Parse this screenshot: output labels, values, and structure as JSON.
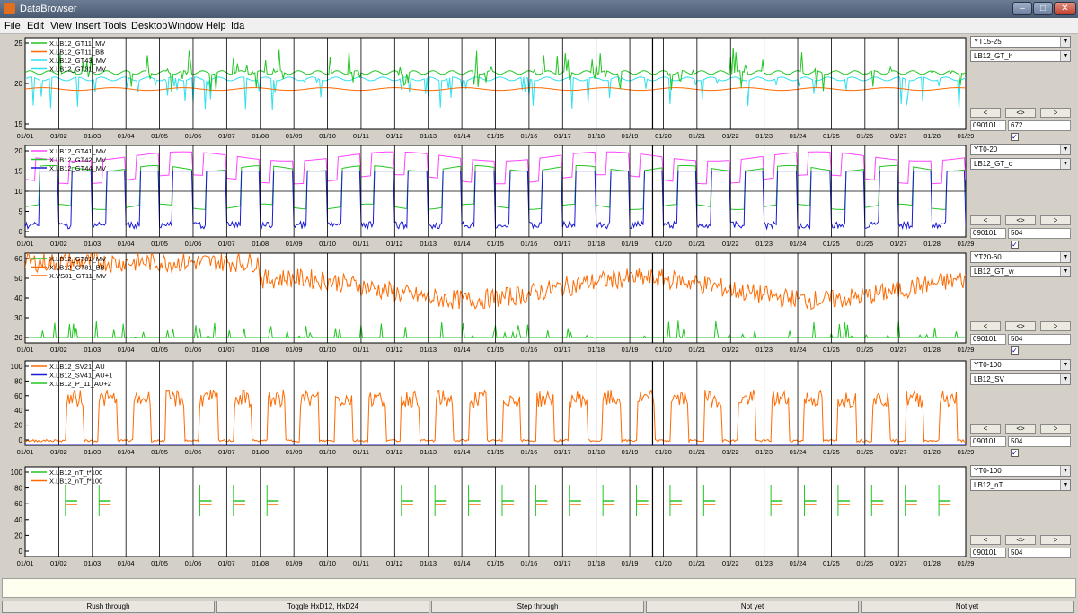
{
  "window": {
    "title": "DataBrowser"
  },
  "menu": [
    "File",
    "Edit",
    "View",
    "Insert",
    "Tools",
    "Desktop",
    "Window",
    "Help",
    "Ida"
  ],
  "colors": {
    "green": "#22c522",
    "orange": "#ff6a00",
    "cyan": "#2fe0ee",
    "magenta": "#ff44ff",
    "blue": "#1a1ad6",
    "axisbg": "#ffffff"
  },
  "date_labels": [
    "01/01",
    "01/02",
    "01/03",
    "01/04",
    "01/05",
    "01/06",
    "01/07",
    "01/08",
    "01/09",
    "01/10",
    "01/11",
    "01/12",
    "01/13",
    "01/14",
    "01/15",
    "01/16",
    "01/17",
    "01/18",
    "01/19",
    "01/20",
    "01/21",
    "01/22",
    "01/23",
    "01/24",
    "01/25",
    "01/26",
    "01/27",
    "01/28",
    "01/29"
  ],
  "panels": [
    {
      "legend": [
        "X.LB12_GT11_MV",
        "X.LB12_GT11_BB",
        "X.LB12_GT43_MV",
        "X.LB12_GT31_MV"
      ],
      "yticks": [
        "25",
        "20",
        "15"
      ],
      "scale": "YT15-25",
      "group": "LB12_GT_h",
      "date": "090101",
      "count": "672",
      "step_buttons": [
        "<",
        "<>",
        ">"
      ]
    },
    {
      "legend": [
        "X.LB12_GT41_MV",
        "X.LB12_GT42_MV",
        "X.LB12_GT44_MV"
      ],
      "yticks": [
        "20",
        "15",
        "10",
        "5",
        "0"
      ],
      "scale": "YT0-20",
      "group": "LB12_GT_c",
      "date": "090101",
      "count": "504",
      "step_buttons": [
        "<",
        "<>",
        ">"
      ]
    },
    {
      "legend": [
        "X.LB12_GT81_MV",
        "X.LB12_GT81_BB",
        "X.VS81_GT11_MV"
      ],
      "yticks": [
        "60",
        "50",
        "40",
        "30",
        "20"
      ],
      "scale": "YT20-60",
      "group": "LB12_GT_w",
      "date": "090101",
      "count": "504",
      "step_buttons": [
        "<",
        "<>",
        ">"
      ]
    },
    {
      "legend": [
        "X.LB12_SV21_AU",
        "X.LB12_SV41_AU+1",
        "X.LB12_P_11_AU+2"
      ],
      "yticks": [
        "100",
        "80",
        "60",
        "40",
        "20",
        "0"
      ],
      "scale": "YT0-100",
      "group": "LB12_SV",
      "date": "090101",
      "count": "504",
      "step_buttons": [
        "<",
        "<>",
        ">"
      ]
    },
    {
      "legend": [
        "X.LB12_nT_t*100",
        "X.LB12_nT_f*100"
      ],
      "yticks": [
        "100",
        "80",
        "60",
        "40",
        "20",
        "0"
      ],
      "scale": "YT0-100",
      "group": "LB12_nT",
      "date": "090101",
      "count": "504",
      "step_buttons": [
        "<",
        "<>",
        ">"
      ]
    }
  ],
  "check_mark": "✓",
  "bottom_buttons": [
    "Rush through",
    "Toggle HxD12, HxD24",
    "Step through",
    "Not yet",
    "Not yet"
  ]
}
